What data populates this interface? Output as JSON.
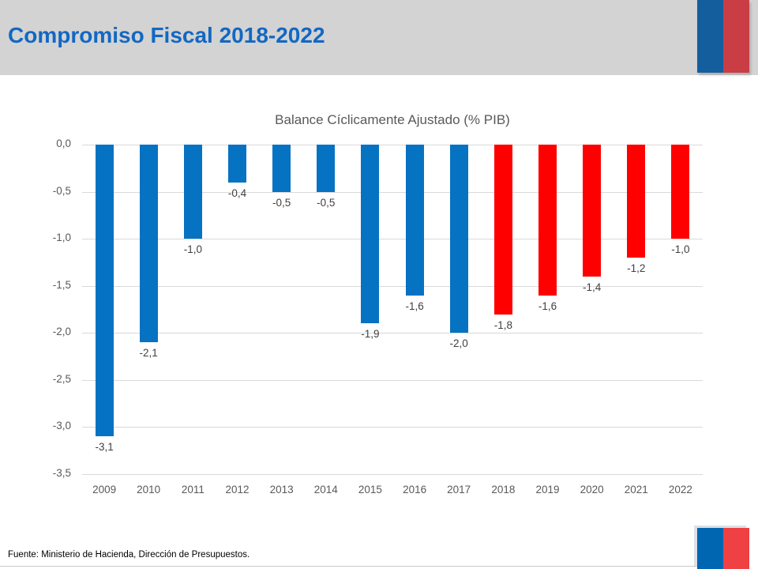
{
  "slide": {
    "title": "Compromiso Fiscal 2018-2022",
    "source": "Fuente:  Ministerio de Hacienda, Dirección de Presupuestos.",
    "colors": {
      "header_bg": "#d3d3d3",
      "title_text": "#1268c3",
      "flag_top_blue": "#155e9e",
      "flag_top_red": "#c93d44",
      "flag_bottom_blue": "#0066b2",
      "flag_bottom_red": "#ef4044"
    }
  },
  "chart_data": {
    "type": "bar",
    "title": "Balance Cíclicamente Ajustado (% PIB)",
    "xlabel": "",
    "ylabel": "",
    "ylim": [
      0,
      -3.5
    ],
    "grid": true,
    "legend": false,
    "categories": [
      "2009",
      "2010",
      "2011",
      "2012",
      "2013",
      "2014",
      "2015",
      "2016",
      "2017",
      "2018",
      "2019",
      "2020",
      "2021",
      "2022"
    ],
    "values": [
      -3.1,
      -2.1,
      -1.0,
      -0.4,
      -0.5,
      -0.5,
      -1.9,
      -1.6,
      -2.0,
      -1.8,
      -1.6,
      -1.4,
      -1.2,
      -1.0
    ],
    "value_labels": [
      "-3,1",
      "-2,1",
      "-1,0",
      "-0,4",
      "-0,5",
      "-0,5",
      "-1,9",
      "-1,6",
      "-2,0",
      "-1,8",
      "-1,6",
      "-1,4",
      "-1,2",
      "-1,0"
    ],
    "bar_colors": [
      "#0672c2",
      "#0672c2",
      "#0672c2",
      "#0672c2",
      "#0672c2",
      "#0672c2",
      "#0672c2",
      "#0672c2",
      "#0672c2",
      "#fe0000",
      "#fe0000",
      "#fe0000",
      "#fe0000",
      "#fe0000"
    ],
    "y_ticks": [
      {
        "label": "0,0",
        "value": 0
      },
      {
        "label": "-0,5",
        "value": -0.5
      },
      {
        "label": "-1,0",
        "value": -1.0
      },
      {
        "label": "-1,5",
        "value": -1.5
      },
      {
        "label": "-2,0",
        "value": -2.0
      },
      {
        "label": "-2,5",
        "value": -2.5
      },
      {
        "label": "-3,0",
        "value": -3.0
      },
      {
        "label": "-3,5",
        "value": -3.5
      }
    ],
    "colors": {
      "grid": "#d9d9d9",
      "axis_text": "#595959",
      "value_label_text": "#404040",
      "title_text": "#595959"
    }
  }
}
